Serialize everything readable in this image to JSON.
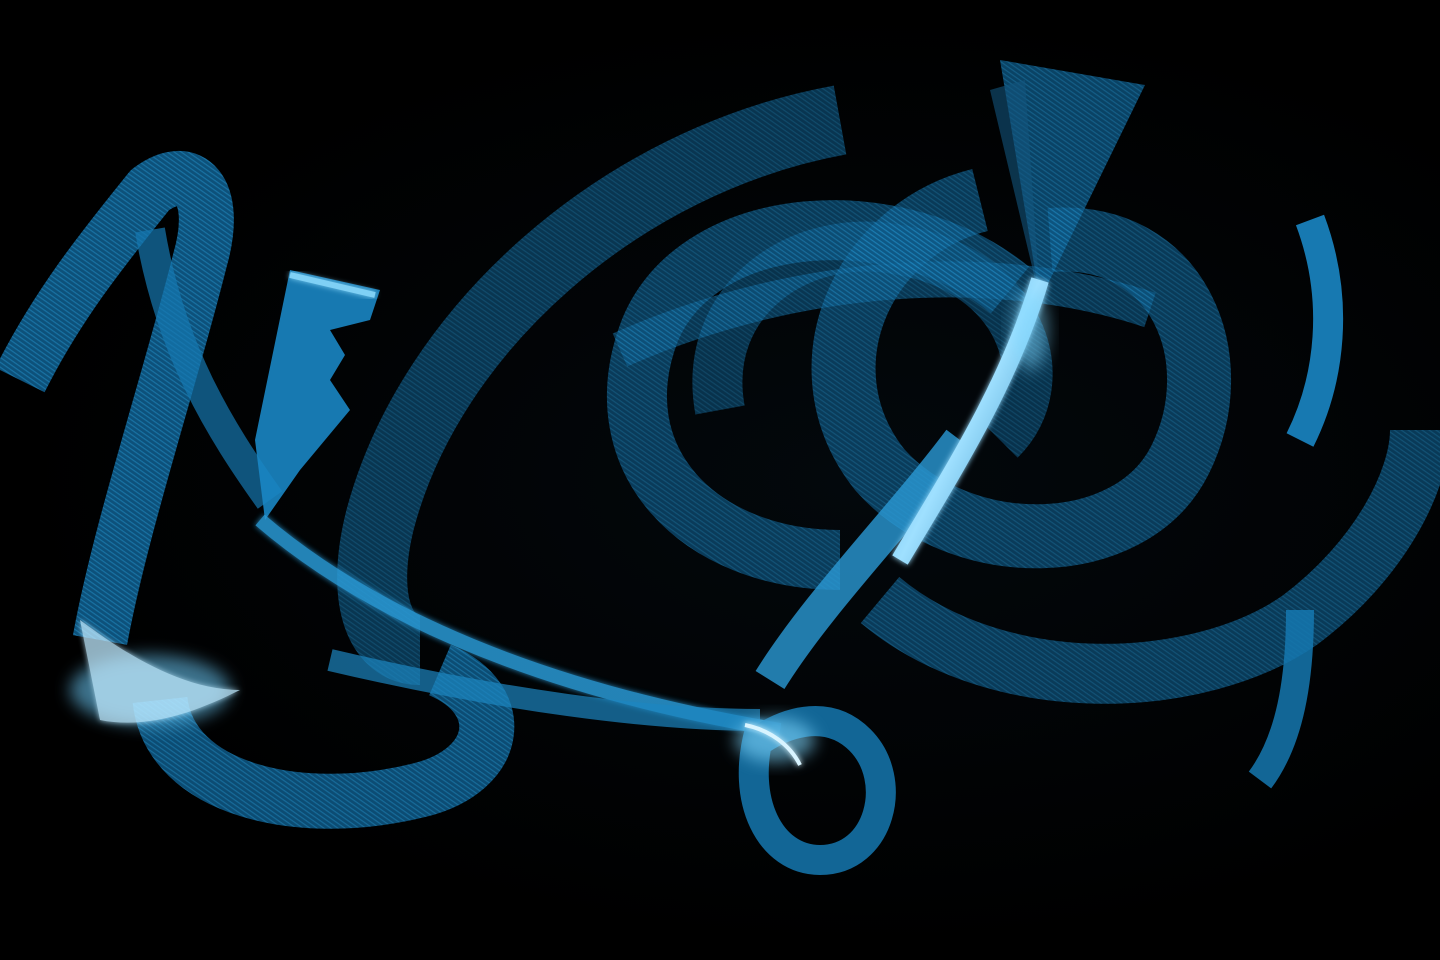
{
  "image": {
    "kind": "light-painting photograph",
    "background_color": "#000000",
    "palette": {
      "deep_blue": "#0b4f7a",
      "mid_blue": "#1578b0",
      "bright_cyan": "#3fb0e8",
      "highlight": "#bfeaff"
    }
  }
}
